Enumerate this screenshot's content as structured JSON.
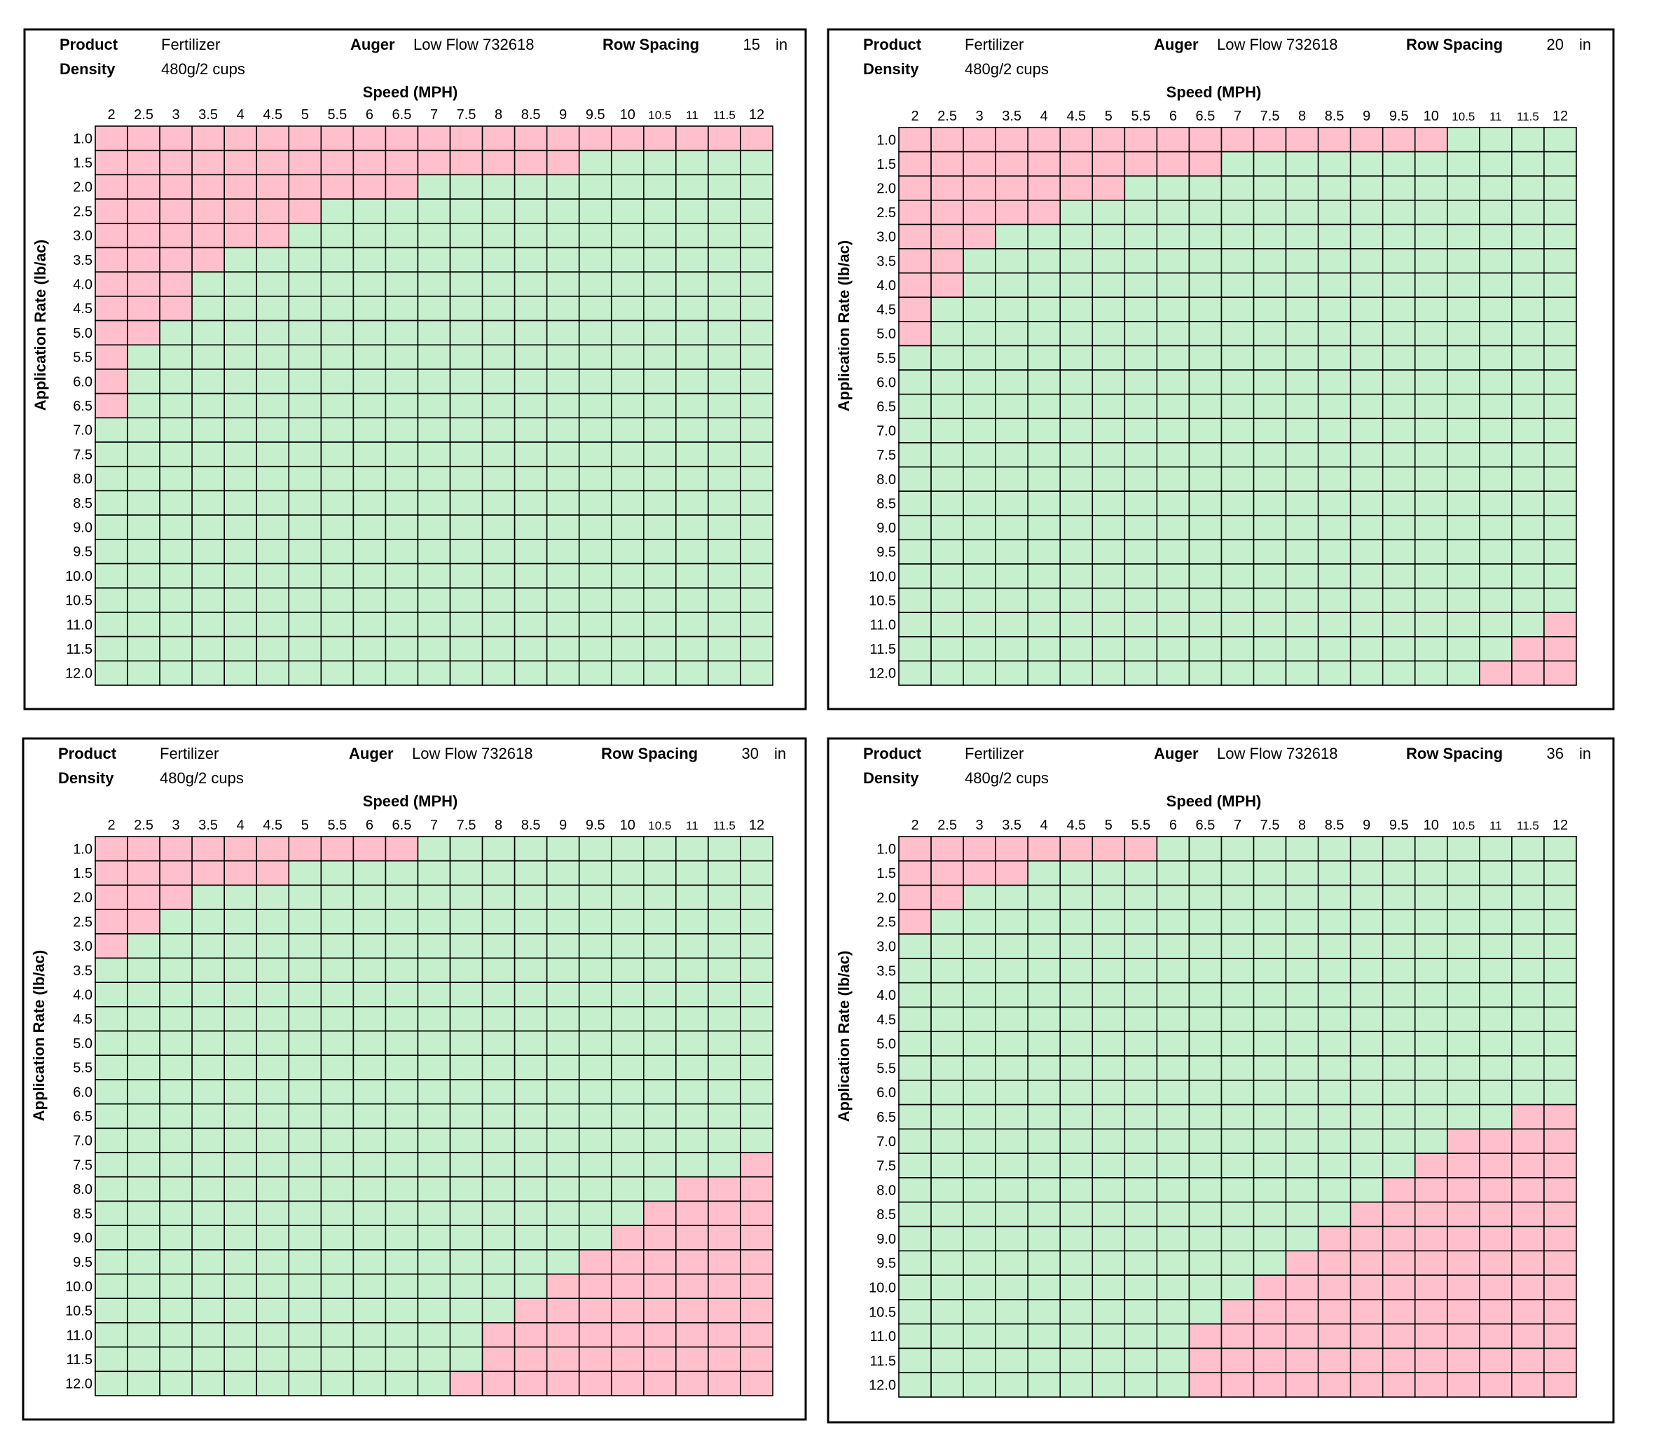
{
  "colors": {
    "out_of_range": "#FFC0CB",
    "in_range": "#C6EFCE",
    "grid": "#000000",
    "panel_border": "#000000"
  },
  "chart_data": [
    {
      "type": "heatmap",
      "header": {
        "product_label": "Product",
        "product": "Fertilizer",
        "density_label": "Density",
        "density": "480g/2 cups",
        "auger_label": "Auger",
        "auger": "Low Flow 732618",
        "row_spacing_label": "Row Spacing",
        "row_spacing": "15",
        "row_spacing_unit": "in"
      },
      "xlabel": "Speed (MPH)",
      "ylabel": "Application Rate (lb/ac)",
      "x": [
        "2",
        "2.5",
        "3",
        "3.5",
        "4",
        "4.5",
        "5",
        "5.5",
        "6",
        "6.5",
        "7",
        "7.5",
        "8",
        "8.5",
        "9",
        "9.5",
        "10",
        "10.5",
        "11",
        "11.5",
        "12"
      ],
      "y": [
        "1.0",
        "1.5",
        "2.0",
        "2.5",
        "3.0",
        "3.5",
        "4.0",
        "4.5",
        "5.0",
        "5.5",
        "6.0",
        "6.5",
        "7.0",
        "7.5",
        "8.0",
        "8.5",
        "9.0",
        "9.5",
        "10.0",
        "10.5",
        "11.0",
        "11.5",
        "12.0"
      ],
      "pink_rows": [
        [
          0,
          20
        ],
        [
          0,
          14
        ],
        [
          0,
          9
        ],
        [
          0,
          6
        ],
        [
          0,
          5
        ],
        [
          0,
          3
        ],
        [
          0,
          2
        ],
        [
          0,
          2
        ],
        [
          0,
          1
        ],
        [
          0,
          0
        ],
        [
          0,
          0
        ],
        [
          0,
          0
        ],
        null,
        null,
        null,
        null,
        null,
        null,
        null,
        null,
        null,
        null,
        null
      ]
    },
    {
      "type": "heatmap",
      "header": {
        "product_label": "Product",
        "product": "Fertilizer",
        "density_label": "Density",
        "density": "480g/2 cups",
        "auger_label": "Auger",
        "auger": "Low Flow 732618",
        "row_spacing_label": "Row Spacing",
        "row_spacing": "20",
        "row_spacing_unit": "in"
      },
      "xlabel": "Speed (MPH)",
      "ylabel": "Application Rate (lb/ac)",
      "x": [
        "2",
        "2.5",
        "3",
        "3.5",
        "4",
        "4.5",
        "5",
        "5.5",
        "6",
        "6.5",
        "7",
        "7.5",
        "8",
        "8.5",
        "9",
        "9.5",
        "10",
        "10.5",
        "11",
        "11.5",
        "12"
      ],
      "y": [
        "1.0",
        "1.5",
        "2.0",
        "2.5",
        "3.0",
        "3.5",
        "4.0",
        "4.5",
        "5.0",
        "5.5",
        "6.0",
        "6.5",
        "7.0",
        "7.5",
        "8.0",
        "8.5",
        "9.0",
        "9.5",
        "10.0",
        "10.5",
        "11.0",
        "11.5",
        "12.0"
      ],
      "pink_rows": [
        [
          0,
          16
        ],
        [
          0,
          9
        ],
        [
          0,
          6
        ],
        [
          0,
          4
        ],
        [
          0,
          2
        ],
        [
          0,
          1
        ],
        [
          0,
          1
        ],
        [
          0,
          0
        ],
        [
          0,
          0
        ],
        null,
        null,
        null,
        null,
        null,
        null,
        null,
        null,
        null,
        null,
        null,
        [
          20,
          20
        ],
        [
          19,
          20
        ],
        [
          18,
          20
        ]
      ]
    },
    {
      "type": "heatmap",
      "header": {
        "product_label": "Product",
        "product": "Fertilizer",
        "density_label": "Density",
        "density": "480g/2 cups",
        "auger_label": "Auger",
        "auger": "Low Flow 732618",
        "row_spacing_label": "Row Spacing",
        "row_spacing": "30",
        "row_spacing_unit": "in"
      },
      "xlabel": "Speed (MPH)",
      "ylabel": "Application Rate (lb/ac)",
      "x": [
        "2",
        "2.5",
        "3",
        "3.5",
        "4",
        "4.5",
        "5",
        "5.5",
        "6",
        "6.5",
        "7",
        "7.5",
        "8",
        "8.5",
        "9",
        "9.5",
        "10",
        "10.5",
        "11",
        "11.5",
        "12"
      ],
      "y": [
        "1.0",
        "1.5",
        "2.0",
        "2.5",
        "3.0",
        "3.5",
        "4.0",
        "4.5",
        "5.0",
        "5.5",
        "6.0",
        "6.5",
        "7.0",
        "7.5",
        "8.0",
        "8.5",
        "9.0",
        "9.5",
        "10.0",
        "10.5",
        "11.0",
        "11.5",
        "12.0"
      ],
      "pink_rows": [
        [
          0,
          9
        ],
        [
          0,
          5
        ],
        [
          0,
          2
        ],
        [
          0,
          1
        ],
        [
          0,
          0
        ],
        null,
        null,
        null,
        null,
        null,
        null,
        null,
        null,
        [
          20,
          20
        ],
        [
          18,
          20
        ],
        [
          17,
          20
        ],
        [
          16,
          20
        ],
        [
          15,
          20
        ],
        [
          14,
          20
        ],
        [
          13,
          20
        ],
        [
          12,
          20
        ],
        [
          12,
          20
        ],
        [
          11,
          20
        ]
      ]
    },
    {
      "type": "heatmap",
      "header": {
        "product_label": "Product",
        "product": "Fertilizer",
        "density_label": "Density",
        "density": "480g/2 cups",
        "auger_label": "Auger",
        "auger": "Low Flow 732618",
        "row_spacing_label": "Row Spacing",
        "row_spacing": "36",
        "row_spacing_unit": "in"
      },
      "xlabel": "Speed (MPH)",
      "ylabel": "Application Rate (lb/ac)",
      "x": [
        "2",
        "2.5",
        "3",
        "3.5",
        "4",
        "4.5",
        "5",
        "5.5",
        "6",
        "6.5",
        "7",
        "7.5",
        "8",
        "8.5",
        "9",
        "9.5",
        "10",
        "10.5",
        "11",
        "11.5",
        "12"
      ],
      "y": [
        "1.0",
        "1.5",
        "2.0",
        "2.5",
        "3.0",
        "3.5",
        "4.0",
        "4.5",
        "5.0",
        "5.5",
        "6.0",
        "6.5",
        "7.0",
        "7.5",
        "8.0",
        "8.5",
        "9.0",
        "9.5",
        "10.0",
        "10.5",
        "11.0",
        "11.5",
        "12.0"
      ],
      "pink_rows": [
        [
          0,
          7
        ],
        [
          0,
          3
        ],
        [
          0,
          1
        ],
        [
          0,
          0
        ],
        null,
        null,
        null,
        null,
        null,
        null,
        null,
        [
          19,
          20
        ],
        [
          17,
          20
        ],
        [
          16,
          20
        ],
        [
          15,
          20
        ],
        [
          14,
          20
        ],
        [
          13,
          20
        ],
        [
          12,
          20
        ],
        [
          11,
          20
        ],
        [
          10,
          20
        ],
        [
          9,
          20
        ],
        [
          9,
          20
        ],
        [
          9,
          20
        ]
      ]
    }
  ]
}
